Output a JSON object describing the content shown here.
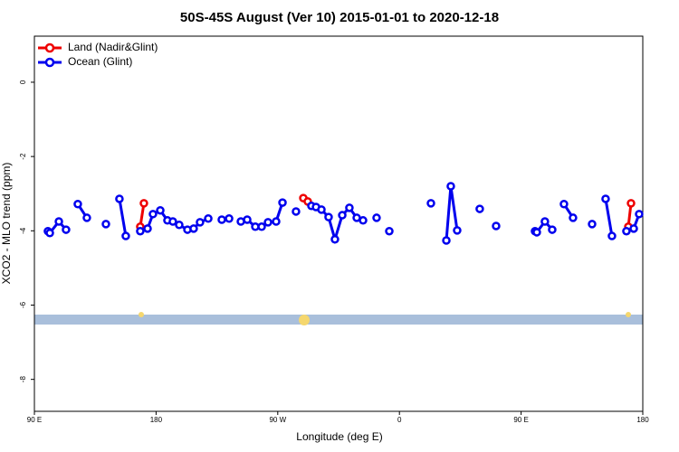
{
  "chart_data": {
    "type": "line",
    "title": "50S-45S August (Ver 10)   2015-01-01 to 2020-12-18",
    "x_label": "Longitude (deg E)",
    "y_label": "XCO2 - MLO trend (ppm)",
    "xlim": [
      90,
      540
    ],
    "ylim": [
      -8.86,
      1.24
    ],
    "xticks": [
      {
        "value": 90,
        "label": "90 E"
      },
      {
        "value": 180,
        "label": "180"
      },
      {
        "value": 270,
        "label": "90 W"
      },
      {
        "value": 360,
        "label": "0"
      },
      {
        "value": 450,
        "label": "90 E"
      },
      {
        "value": 540,
        "label": "180"
      }
    ],
    "yticks": [
      0,
      -2,
      -4,
      -6,
      -8
    ],
    "legend": "upper left",
    "series": [
      {
        "name": "Land (Nadir&Glint)",
        "color": "#ee0000",
        "x": [
          168.3,
          171.0,
          null,
          288.9,
          292.2,
          null,
          529.3,
          531.3
        ],
        "values": [
          -3.89,
          -3.26,
          null,
          -3.12,
          -3.21,
          null,
          -3.89,
          -3.26
        ]
      },
      {
        "name": "Ocean (Glint)",
        "color": "#0000ee",
        "x": [
          100.0,
          101.4,
          108.1,
          113.4,
          null,
          122.1,
          128.8,
          null,
          142.9,
          null,
          152.9,
          157.6,
          null,
          168.3,
          173.7,
          177.7,
          183.1,
          188.4,
          192.4,
          197.1,
          203.2,
          207.8,
          212.5,
          218.6,
          null,
          228.6,
          234.0,
          null,
          242.7,
          247.4,
          253.4,
          258.1,
          262.8,
          268.8,
          273.5,
          null,
          283.5,
          null,
          294.9,
          298.3,
          302.3,
          307.6,
          312.3,
          317.7,
          323.0,
          328.4,
          333.1,
          null,
          343.1,
          null,
          352.5,
          null,
          383.3,
          null,
          394.7,
          398.0,
          402.7,
          null,
          419.4,
          null,
          431.5,
          null,
          460.3,
          461.6,
          467.6,
          473.0,
          null,
          481.7,
          488.4,
          null,
          502.5,
          null,
          512.5,
          517.2,
          null,
          527.9,
          533.3,
          537.3
        ],
        "values": [
          -4.01,
          -4.06,
          -3.75,
          -3.97,
          null,
          -3.28,
          -3.65,
          null,
          -3.82,
          null,
          -3.14,
          -4.14,
          null,
          -4.01,
          -3.94,
          -3.55,
          -3.45,
          -3.72,
          -3.75,
          -3.84,
          -3.97,
          -3.94,
          -3.77,
          -3.67,
          null,
          -3.7,
          -3.67,
          null,
          -3.75,
          -3.7,
          -3.89,
          -3.89,
          -3.77,
          -3.75,
          -3.24,
          null,
          -3.48,
          null,
          -3.33,
          -3.36,
          -3.43,
          -3.63,
          -4.23,
          -3.58,
          -3.38,
          -3.65,
          -3.72,
          null,
          -3.65,
          null,
          -4.01,
          null,
          -3.26,
          null,
          -4.26,
          -2.8,
          -3.99,
          null,
          -3.41,
          null,
          -3.87,
          null,
          -4.01,
          -4.04,
          -3.75,
          -3.97,
          null,
          -3.28,
          -3.65,
          null,
          -3.82,
          null,
          -3.14,
          -4.14,
          null,
          -4.01,
          -3.94,
          -3.55
        ]
      }
    ]
  }
}
